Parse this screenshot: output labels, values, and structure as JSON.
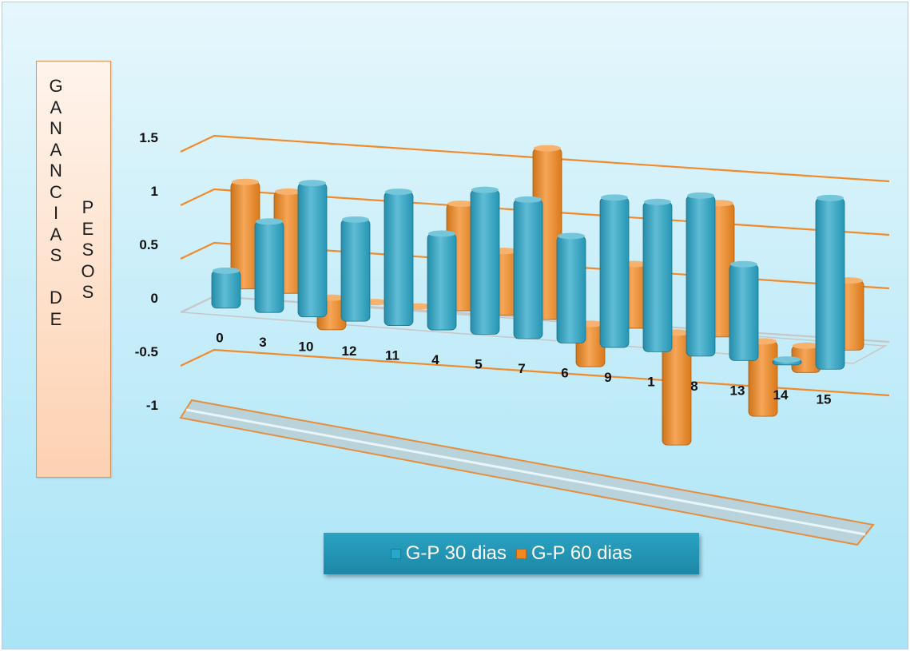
{
  "chart_data": {
    "type": "bar",
    "title": "",
    "ylabel_col1": [
      "G",
      "A",
      "N",
      "A",
      "N",
      "C",
      "I",
      "A",
      "S",
      "",
      "D",
      "E"
    ],
    "ylabel_col2": [
      "P",
      "E",
      "S",
      "O",
      "S"
    ],
    "y_ticks": [
      "1.5",
      "1",
      "0.5",
      "0",
      "-0.5",
      "-1"
    ],
    "ylim": [
      -1,
      1.5
    ],
    "categories": [
      "0",
      "3",
      "10",
      "12",
      "11",
      "4",
      "5",
      "7",
      "6",
      "9",
      "1",
      "8",
      "13",
      "14",
      "15"
    ],
    "series": [
      {
        "name": "G-P 30 dias",
        "color": "#2aa6c8",
        "values": [
          0.35,
          0.85,
          1.25,
          0.95,
          1.25,
          0.9,
          1.35,
          1.3,
          1.0,
          1.4,
          1.4,
          1.5,
          0.9,
          0.05,
          1.6
        ]
      },
      {
        "name": "G-P 60 dias",
        "color": "#f2881f",
        "values": [
          1.0,
          0.95,
          -0.3,
          0.0,
          0.0,
          1.0,
          0.6,
          1.6,
          -0.4,
          0.6,
          -1.05,
          1.25,
          -0.7,
          -0.25,
          0.65
        ]
      }
    ],
    "legend_position": "bottom",
    "grid": true
  }
}
